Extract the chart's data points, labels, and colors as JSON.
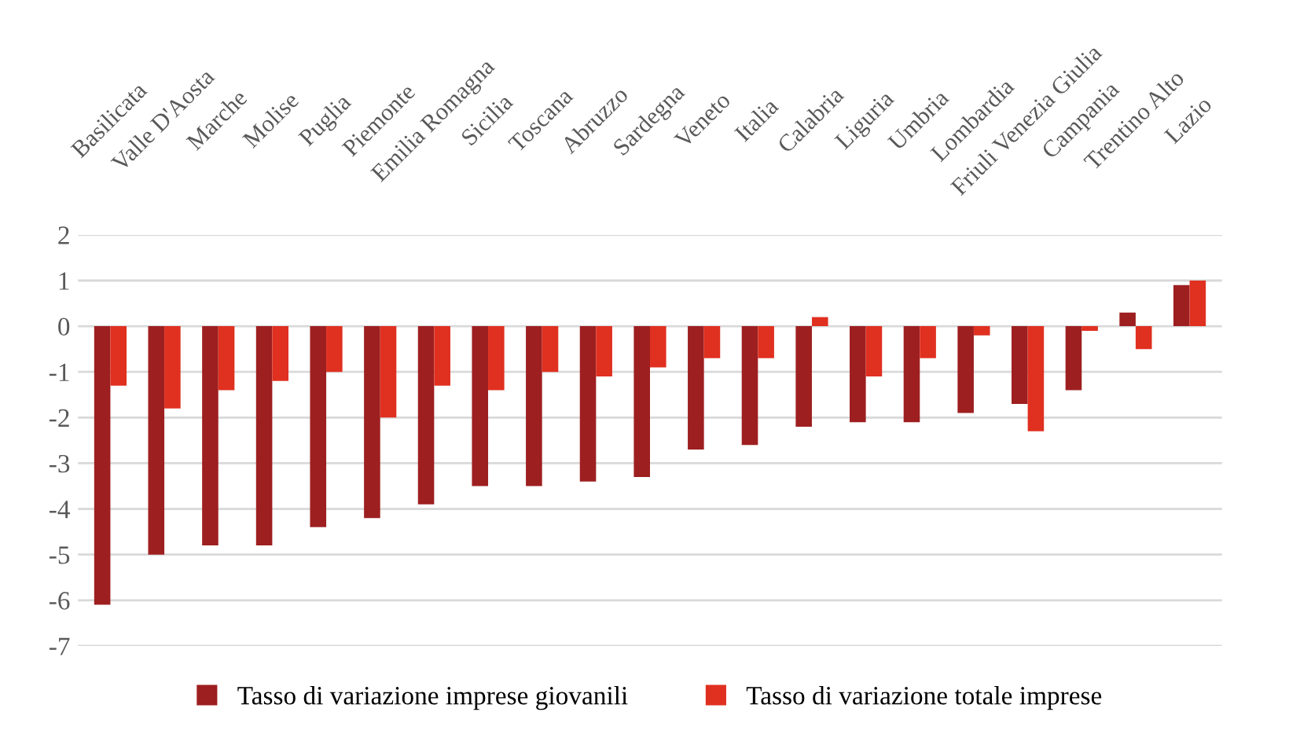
{
  "chart_data": {
    "type": "bar",
    "categories": [
      "Basilicata",
      "Valle D'Aosta",
      "Marche",
      "Molise",
      "Puglia",
      "Piemonte",
      "Emilia Romagna",
      "Sicilia",
      "Toscana",
      "Abruzzo",
      "Sardegna",
      "Veneto",
      "Italia",
      "Calabria",
      "Liguria",
      "Umbria",
      "Lombardia",
      "Friuli Venezia Giulia",
      "Campania",
      "Trentino Alto",
      "Lazio"
    ],
    "series": [
      {
        "name": "Tasso di variazione imprese giovanili",
        "color": "#9e1f20",
        "values": [
          -6.1,
          -5.0,
          -4.8,
          -4.8,
          -4.4,
          -4.2,
          -3.9,
          -3.5,
          -3.5,
          -3.4,
          -3.3,
          -2.7,
          -2.6,
          -2.2,
          -2.1,
          -2.1,
          -1.9,
          -1.7,
          -1.4,
          0.3,
          0.9
        ]
      },
      {
        "name": "Tasso di variazione totale imprese",
        "color": "#e03020",
        "values": [
          -1.3,
          -1.8,
          -1.4,
          -1.2,
          -1.0,
          -2.0,
          -1.3,
          -1.4,
          -1.0,
          -1.1,
          -0.9,
          -0.7,
          -0.7,
          0.2,
          -1.1,
          -0.7,
          -0.2,
          -2.3,
          -0.1,
          -0.5,
          1.0
        ]
      }
    ],
    "ylim": [
      -7,
      2
    ],
    "yticks": [
      -7,
      -6,
      -5,
      -4,
      -3,
      -2,
      -1,
      0,
      1,
      2
    ],
    "grid": "y",
    "legend": "bottom"
  }
}
